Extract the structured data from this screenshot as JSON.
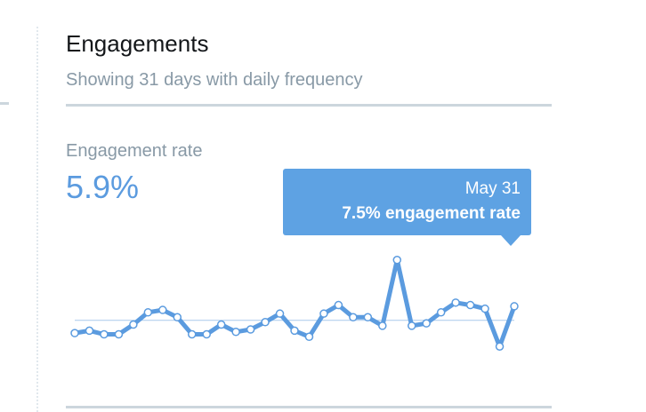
{
  "panel": {
    "title": "Engagements",
    "subtitle": "Showing 31 days with daily frequency"
  },
  "metric": {
    "label": "Engagement rate",
    "value": "5.9%"
  },
  "tooltip": {
    "date": "May 31",
    "metric_text": "7.5% engagement rate"
  },
  "colors": {
    "line": "#5b9bdf",
    "tooltip_bg": "#5ea2e3",
    "average_line": "#a8c9ec",
    "rule": "#ccd6dd",
    "title": "#14171a",
    "muted_text": "#8899a6"
  },
  "chart_data": {
    "type": "line",
    "x": [
      "1",
      "2",
      "3",
      "4",
      "5",
      "6",
      "7",
      "8",
      "9",
      "10",
      "11",
      "12",
      "13",
      "14",
      "15",
      "16",
      "17",
      "18",
      "19",
      "20",
      "21",
      "22",
      "23",
      "24",
      "25",
      "26",
      "27",
      "28",
      "29",
      "30",
      "31"
    ],
    "series": [
      {
        "values": [
          5.3,
          5.5,
          5.2,
          5.2,
          6.0,
          7.0,
          7.2,
          6.6,
          5.2,
          5.2,
          6.0,
          5.4,
          5.6,
          6.2,
          6.9,
          5.5,
          5.0,
          6.9,
          7.6,
          6.6,
          6.6,
          5.9,
          11.3,
          5.9,
          6.1,
          7.0,
          7.8,
          7.6,
          7.3,
          4.2,
          7.5
        ]
      }
    ],
    "average": 6.35,
    "ylim": [
      4.0,
      11.5
    ],
    "grid": false
  }
}
